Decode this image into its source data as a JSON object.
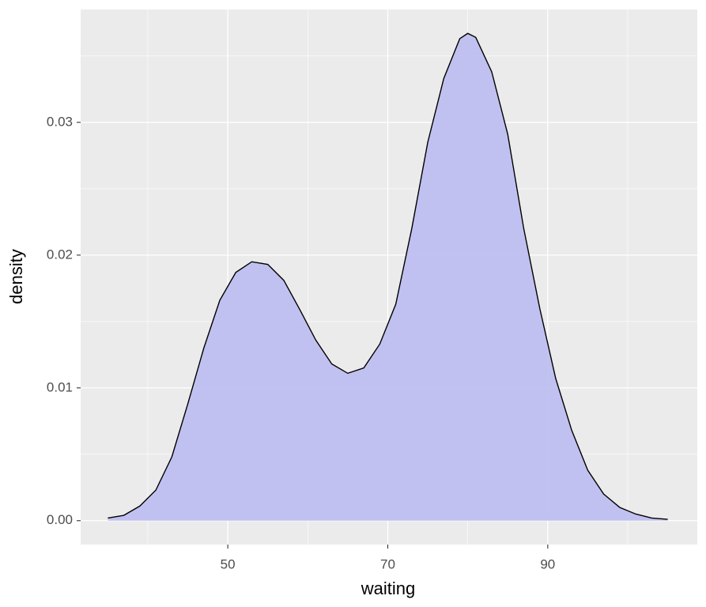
{
  "chart_data": {
    "type": "density",
    "x_label": "waiting",
    "y_label": "density",
    "x": [
      35,
      37,
      39,
      41,
      43,
      45,
      47,
      49,
      51,
      53,
      55,
      57,
      59,
      61,
      63,
      65,
      67,
      69,
      71,
      73,
      75,
      77,
      79,
      80,
      81,
      83,
      85,
      87,
      89,
      91,
      93,
      95,
      97,
      99,
      101,
      103,
      105
    ],
    "values": [
      0.0002,
      0.0004,
      0.0011,
      0.0023,
      0.0048,
      0.0088,
      0.013,
      0.0166,
      0.0187,
      0.0195,
      0.0193,
      0.0181,
      0.0159,
      0.0136,
      0.0118,
      0.0111,
      0.0115,
      0.0133,
      0.0163,
      0.022,
      0.0285,
      0.0333,
      0.0363,
      0.0367,
      0.0364,
      0.0338,
      0.0291,
      0.022,
      0.016,
      0.0107,
      0.0068,
      0.0038,
      0.002,
      0.001,
      0.0005,
      0.0002,
      0.0001
    ],
    "color": "#bcbdf0",
    "line_color": "#000000",
    "xlim": [
      31.6,
      108.7
    ],
    "ylim": [
      -0.0018,
      0.0385
    ],
    "xticks": [
      50,
      70,
      90
    ],
    "yticks": [
      {
        "value": 0,
        "label": "0.00"
      },
      {
        "value": 0.01,
        "label": "0.01"
      },
      {
        "value": 0.02,
        "label": "0.02"
      },
      {
        "value": 0.03,
        "label": "0.03"
      }
    ],
    "grid": true
  }
}
